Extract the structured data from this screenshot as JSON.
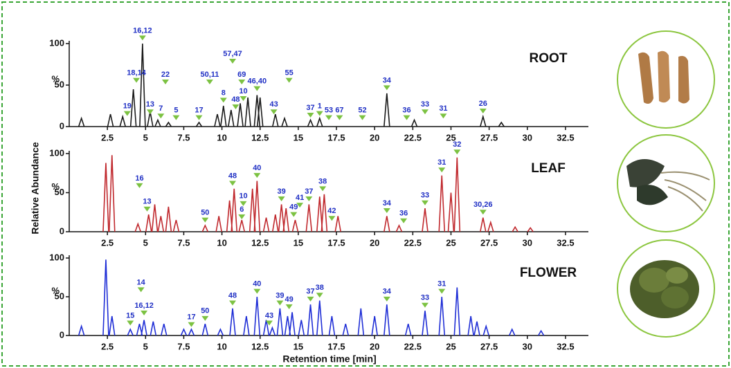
{
  "ylabel": "Relative Abundance",
  "xlabel": "Retention time [min]",
  "chart_data": [
    {
      "type": "chromatogram",
      "title": "ROOT",
      "color": "#1a1a1a",
      "ylabel": "%",
      "xlim": [
        0,
        34
      ],
      "ylim": [
        0,
        100
      ],
      "xticks": [
        2.5,
        5,
        7.5,
        10,
        12.5,
        15,
        17.5,
        20,
        22.5,
        25,
        27.5,
        30,
        32.5
      ],
      "yticks": [
        0,
        50,
        100
      ],
      "x": [
        0.8,
        2.7,
        3.5,
        4.2,
        4.8,
        5.3,
        5.8,
        6.5,
        8.5,
        9.7,
        10.1,
        10.6,
        11.2,
        11.7,
        12.3,
        12.5,
        13.5,
        14.1,
        15.8,
        16.4,
        20.8,
        22.6,
        27.1,
        28.3
      ],
      "values": [
        10,
        15,
        12,
        45,
        100,
        18,
        8,
        5,
        5,
        15,
        25,
        20,
        28,
        35,
        38,
        35,
        15,
        10,
        8,
        10,
        40,
        8,
        12,
        5
      ],
      "annotations": [
        {
          "label": "16,12",
          "x": 4.8,
          "y": 103
        },
        {
          "label": "18,14",
          "x": 4.4,
          "y": 52
        },
        {
          "label": "19",
          "x": 3.8,
          "y": 12
        },
        {
          "label": "13",
          "x": 5.3,
          "y": 14
        },
        {
          "label": "22",
          "x": 6.3,
          "y": 50
        },
        {
          "label": "7",
          "x": 6.0,
          "y": 9
        },
        {
          "label": "5",
          "x": 7.0,
          "y": 7
        },
        {
          "label": "17",
          "x": 8.5,
          "y": 7
        },
        {
          "label": "50,11",
          "x": 9.2,
          "y": 50
        },
        {
          "label": "8",
          "x": 10.1,
          "y": 28
        },
        {
          "label": "57,47",
          "x": 10.7,
          "y": 75
        },
        {
          "label": "48",
          "x": 10.9,
          "y": 20
        },
        {
          "label": "10",
          "x": 11.4,
          "y": 30
        },
        {
          "label": "69",
          "x": 11.3,
          "y": 50
        },
        {
          "label": "46,40",
          "x": 12.3,
          "y": 42
        },
        {
          "label": "43",
          "x": 13.4,
          "y": 14
        },
        {
          "label": "55",
          "x": 14.4,
          "y": 52
        },
        {
          "label": "37",
          "x": 15.8,
          "y": 10
        },
        {
          "label": "1",
          "x": 16.4,
          "y": 12
        },
        {
          "label": "53",
          "x": 17.0,
          "y": 7
        },
        {
          "label": "67",
          "x": 17.7,
          "y": 7
        },
        {
          "label": "52",
          "x": 19.2,
          "y": 7
        },
        {
          "label": "34",
          "x": 20.8,
          "y": 43
        },
        {
          "label": "36",
          "x": 22.1,
          "y": 7
        },
        {
          "label": "33",
          "x": 23.3,
          "y": 14
        },
        {
          "label": "31",
          "x": 24.5,
          "y": 9
        },
        {
          "label": "26",
          "x": 27.1,
          "y": 15
        }
      ]
    },
    {
      "type": "chromatogram",
      "title": "LEAF",
      "color": "#c0282d",
      "ylabel": "%",
      "xlim": [
        0,
        34
      ],
      "ylim": [
        0,
        100
      ],
      "xticks": [
        2.5,
        5,
        7.5,
        10,
        12.5,
        15,
        17.5,
        20,
        22.5,
        25,
        27.5,
        30,
        32.5
      ],
      "yticks": [
        0,
        50,
        100
      ],
      "x": [
        2.4,
        2.8,
        4.5,
        5.2,
        5.6,
        6.0,
        6.5,
        7.0,
        8.9,
        9.8,
        10.5,
        10.8,
        11.3,
        12.0,
        12.3,
        12.9,
        13.5,
        13.9,
        14.2,
        14.8,
        15.7,
        16.4,
        16.7,
        17.6,
        20.8,
        21.6,
        23.3,
        24.4,
        25.0,
        25.4,
        27.1,
        27.6,
        29.2,
        30.2
      ],
      "values": [
        88,
        98,
        10,
        22,
        35,
        20,
        32,
        15,
        8,
        20,
        40,
        55,
        15,
        55,
        65,
        18,
        22,
        35,
        30,
        15,
        35,
        45,
        48,
        20,
        20,
        8,
        30,
        72,
        50,
        95,
        18,
        12,
        6,
        5
      ],
      "annotations": [
        {
          "label": "16",
          "x": 4.6,
          "y": 55
        },
        {
          "label": "13",
          "x": 5.1,
          "y": 25
        },
        {
          "label": "50",
          "x": 8.9,
          "y": 11
        },
        {
          "label": "48",
          "x": 10.7,
          "y": 58
        },
        {
          "label": "10",
          "x": 11.4,
          "y": 32
        },
        {
          "label": "6",
          "x": 11.3,
          "y": 15
        },
        {
          "label": "40",
          "x": 12.3,
          "y": 68
        },
        {
          "label": "39",
          "x": 13.9,
          "y": 38
        },
        {
          "label": "49",
          "x": 14.7,
          "y": 18
        },
        {
          "label": "41",
          "x": 15.1,
          "y": 30
        },
        {
          "label": "37",
          "x": 15.7,
          "y": 38
        },
        {
          "label": "38",
          "x": 16.6,
          "y": 51
        },
        {
          "label": "42",
          "x": 17.2,
          "y": 13
        },
        {
          "label": "34",
          "x": 20.8,
          "y": 23
        },
        {
          "label": "36",
          "x": 21.9,
          "y": 10
        },
        {
          "label": "33",
          "x": 23.3,
          "y": 33
        },
        {
          "label": "31",
          "x": 24.4,
          "y": 75
        },
        {
          "label": "32",
          "x": 25.4,
          "y": 98
        },
        {
          "label": "30,26",
          "x": 27.1,
          "y": 21
        }
      ]
    },
    {
      "type": "chromatogram",
      "title": "FLOWER",
      "color": "#1f2ed6",
      "ylabel": "%",
      "xlim": [
        0,
        34
      ],
      "ylim": [
        0,
        100
      ],
      "xticks": [
        2.5,
        5,
        7.5,
        10,
        12.5,
        15,
        17.5,
        20,
        22.5,
        25,
        27.5,
        30,
        32.5
      ],
      "yticks": [
        0,
        50,
        100
      ],
      "x": [
        0.8,
        2.4,
        2.8,
        4.0,
        4.6,
        4.9,
        5.5,
        6.2,
        7.5,
        8.0,
        8.9,
        9.9,
        10.7,
        11.6,
        12.3,
        12.9,
        13.3,
        13.8,
        14.3,
        14.6,
        15.2,
        15.8,
        16.4,
        17.2,
        18.1,
        19.1,
        20.0,
        20.8,
        22.2,
        23.3,
        24.4,
        25.4,
        26.3,
        26.7,
        27.3,
        29.0,
        30.9
      ],
      "values": [
        12,
        98,
        25,
        8,
        15,
        20,
        18,
        15,
        8,
        8,
        15,
        8,
        35,
        25,
        50,
        20,
        10,
        35,
        25,
        30,
        20,
        40,
        45,
        25,
        15,
        35,
        25,
        40,
        15,
        32,
        50,
        62,
        25,
        18,
        12,
        8,
        6
      ],
      "annotations": [
        {
          "label": "15",
          "x": 4.0,
          "y": 12
        },
        {
          "label": "14",
          "x": 4.7,
          "y": 55
        },
        {
          "label": "16,12",
          "x": 4.9,
          "y": 25
        },
        {
          "label": "17",
          "x": 8.0,
          "y": 10
        },
        {
          "label": "50",
          "x": 8.9,
          "y": 18
        },
        {
          "label": "48",
          "x": 10.7,
          "y": 38
        },
        {
          "label": "40",
          "x": 12.3,
          "y": 53
        },
        {
          "label": "43",
          "x": 13.1,
          "y": 12
        },
        {
          "label": "39",
          "x": 13.8,
          "y": 38
        },
        {
          "label": "49",
          "x": 14.4,
          "y": 33
        },
        {
          "label": "37",
          "x": 15.8,
          "y": 43
        },
        {
          "label": "38",
          "x": 16.4,
          "y": 48
        },
        {
          "label": "34",
          "x": 20.8,
          "y": 43
        },
        {
          "label": "33",
          "x": 23.3,
          "y": 35
        },
        {
          "label": "31",
          "x": 24.4,
          "y": 53
        }
      ]
    }
  ]
}
